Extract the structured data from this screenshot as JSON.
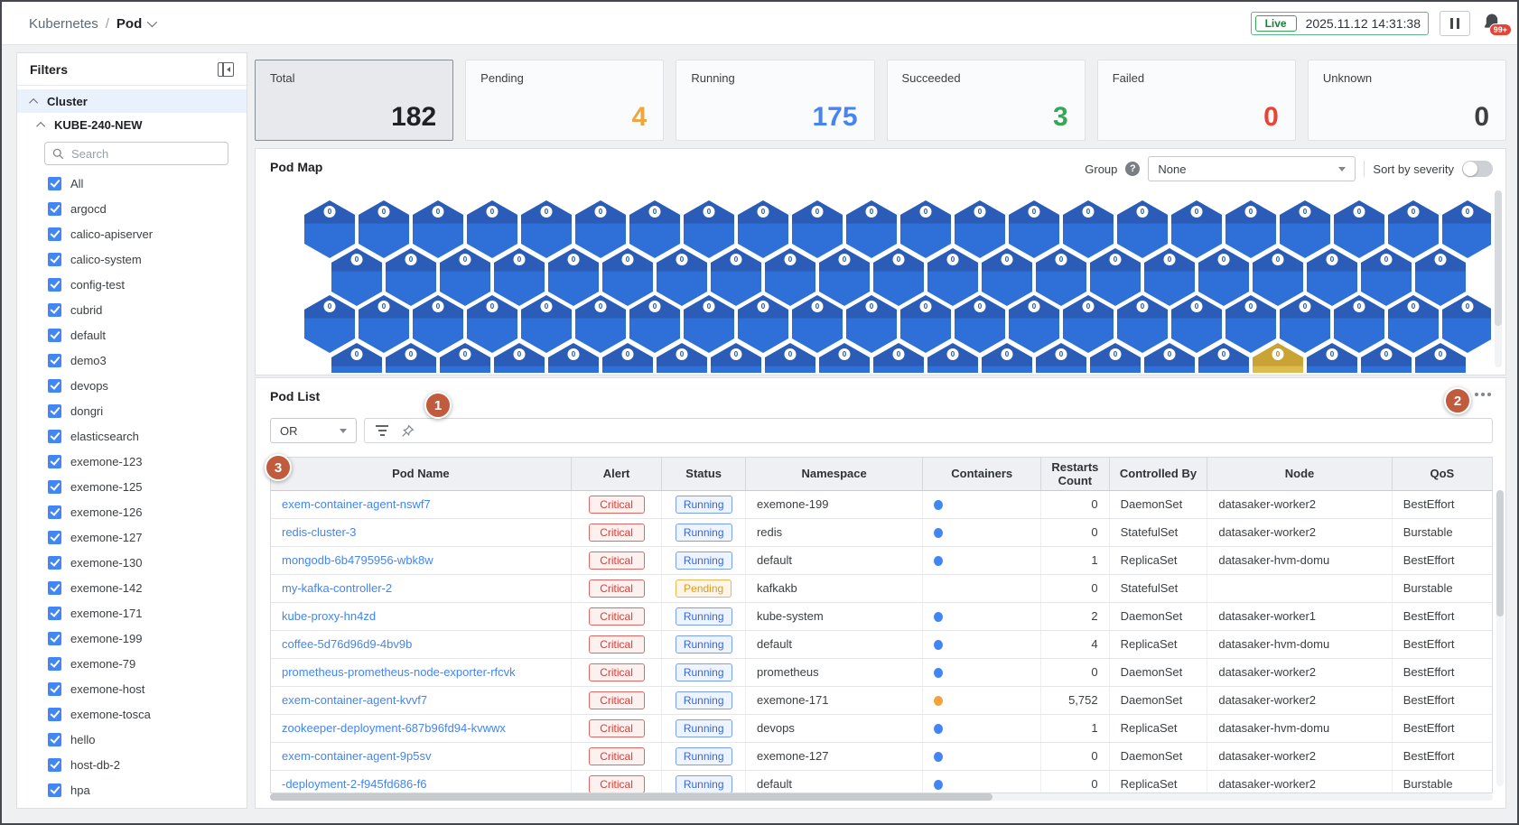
{
  "header": {
    "breadcrumb_root": "Kubernetes",
    "breadcrumb_sep": "/",
    "breadcrumb_current": "Pod",
    "live_label": "Live",
    "timestamp": "2025.11.12 14:31:38",
    "notification_count": "99+"
  },
  "sidebar": {
    "title": "Filters",
    "cluster_group_label": "Cluster",
    "cluster_name": "KUBE-240-NEW",
    "search_placeholder": "Search",
    "namespaces": [
      "All",
      "argocd",
      "calico-apiserver",
      "calico-system",
      "config-test",
      "cubrid",
      "default",
      "demo3",
      "devops",
      "dongri",
      "elasticsearch",
      "exemone-123",
      "exemone-125",
      "exemone-126",
      "exemone-127",
      "exemone-130",
      "exemone-142",
      "exemone-171",
      "exemone-199",
      "exemone-79",
      "exemone-host",
      "exemone-tosca",
      "hello",
      "host-db-2",
      "hpa"
    ],
    "has_partial_item": true
  },
  "status_cards": [
    {
      "label": "Total",
      "value": "182",
      "color": "#202124",
      "selected": true
    },
    {
      "label": "Pending",
      "value": "4",
      "color": "#f0a53f",
      "selected": false
    },
    {
      "label": "Running",
      "value": "175",
      "color": "#4683f4",
      "selected": false
    },
    {
      "label": "Succeeded",
      "value": "3",
      "color": "#34a853",
      "selected": false
    },
    {
      "label": "Failed",
      "value": "0",
      "color": "#ea4335",
      "selected": false
    },
    {
      "label": "Unknown",
      "value": "0",
      "color": "#3c4043",
      "selected": false
    }
  ],
  "pod_map": {
    "title": "Pod Map",
    "group_label": "Group",
    "group_value": "None",
    "sort_label": "Sort by severity",
    "sort_enabled": false,
    "badge_value": "0",
    "rows": [
      {
        "count": 22,
        "offset": false
      },
      {
        "count": 21,
        "offset": true
      },
      {
        "count": 22,
        "offset": false
      },
      {
        "count": 21,
        "offset": true
      }
    ],
    "highlight": {
      "row": 3,
      "index": 17
    }
  },
  "pod_list": {
    "title": "Pod List",
    "logic_operator": "OR",
    "columns": [
      "Pod Name",
      "Alert",
      "Status",
      "Namespace",
      "Containers",
      "Restarts Count",
      "Controlled By",
      "Node",
      "QoS"
    ],
    "rows": [
      {
        "pod_name": "exem-container-agent-nswf7",
        "alert": "Critical",
        "status": "Running",
        "namespace": "exemone-199",
        "container_dot": "blue",
        "restarts": "0",
        "controlled_by": "DaemonSet",
        "node": "datasaker-worker2",
        "qos": "BestEffort"
      },
      {
        "pod_name": "redis-cluster-3",
        "alert": "Critical",
        "status": "Running",
        "namespace": "redis",
        "container_dot": "blue",
        "restarts": "0",
        "controlled_by": "StatefulSet",
        "node": "datasaker-worker2",
        "qos": "Burstable"
      },
      {
        "pod_name": "mongodb-6b4795956-wbk8w",
        "alert": "Critical",
        "status": "Running",
        "namespace": "default",
        "container_dot": "blue",
        "restarts": "1",
        "controlled_by": "ReplicaSet",
        "node": "datasaker-hvm-domu",
        "qos": "BestEffort"
      },
      {
        "pod_name": "my-kafka-controller-2",
        "alert": "Critical",
        "status": "Pending",
        "namespace": "kafkakb",
        "container_dot": null,
        "restarts": "0",
        "controlled_by": "StatefulSet",
        "node": "",
        "qos": "Burstable"
      },
      {
        "pod_name": "kube-proxy-hn4zd",
        "alert": "Critical",
        "status": "Running",
        "namespace": "kube-system",
        "container_dot": "blue",
        "restarts": "2",
        "controlled_by": "DaemonSet",
        "node": "datasaker-worker1",
        "qos": "BestEffort"
      },
      {
        "pod_name": "coffee-5d76d96d9-4bv9b",
        "alert": "Critical",
        "status": "Running",
        "namespace": "default",
        "container_dot": "blue",
        "restarts": "4",
        "controlled_by": "ReplicaSet",
        "node": "datasaker-hvm-domu",
        "qos": "BestEffort"
      },
      {
        "pod_name": "prometheus-prometheus-node-exporter-rfcvk",
        "alert": "Critical",
        "status": "Running",
        "namespace": "prometheus",
        "container_dot": "blue",
        "restarts": "0",
        "controlled_by": "DaemonSet",
        "node": "datasaker-worker2",
        "qos": "BestEffort"
      },
      {
        "pod_name": "exem-container-agent-kvvf7",
        "alert": "Critical",
        "status": "Running",
        "namespace": "exemone-171",
        "container_dot": "orange",
        "restarts": "5,752",
        "controlled_by": "DaemonSet",
        "node": "datasaker-worker2",
        "qos": "BestEffort"
      },
      {
        "pod_name": "zookeeper-deployment-687b96fd94-kvwwx",
        "alert": "Critical",
        "status": "Running",
        "namespace": "devops",
        "container_dot": "blue",
        "restarts": "1",
        "controlled_by": "ReplicaSet",
        "node": "datasaker-hvm-domu",
        "qos": "BestEffort"
      },
      {
        "pod_name": "exem-container-agent-9p5sv",
        "alert": "Critical",
        "status": "Running",
        "namespace": "exemone-127",
        "container_dot": "blue",
        "restarts": "0",
        "controlled_by": "DaemonSet",
        "node": "datasaker-worker2",
        "qos": "BestEffort"
      },
      {
        "pod_name": "-deployment-2-f945fd686-f6",
        "alert": "Critical",
        "status": "Running",
        "namespace": "default",
        "container_dot": "blue",
        "restarts": "0",
        "controlled_by": "ReplicaSet",
        "node": "datasaker-worker2",
        "qos": "Burstable",
        "partial": true
      }
    ]
  },
  "annotations": [
    {
      "number": "1"
    },
    {
      "number": "2"
    },
    {
      "number": "3"
    }
  ],
  "colors": {
    "hex_blue": "#2f70d8",
    "hex_blue_band": "#2a5cb8",
    "hex_blue_text": "#1d4fa8",
    "hex_yellow": "#ddbb4e",
    "hex_yellow_band": "#c9a334",
    "hex_yellow_text": "#a8831f",
    "annotation": "#c15b3d",
    "dot_blue": "#4285f4",
    "dot_orange": "#f2a43a"
  }
}
